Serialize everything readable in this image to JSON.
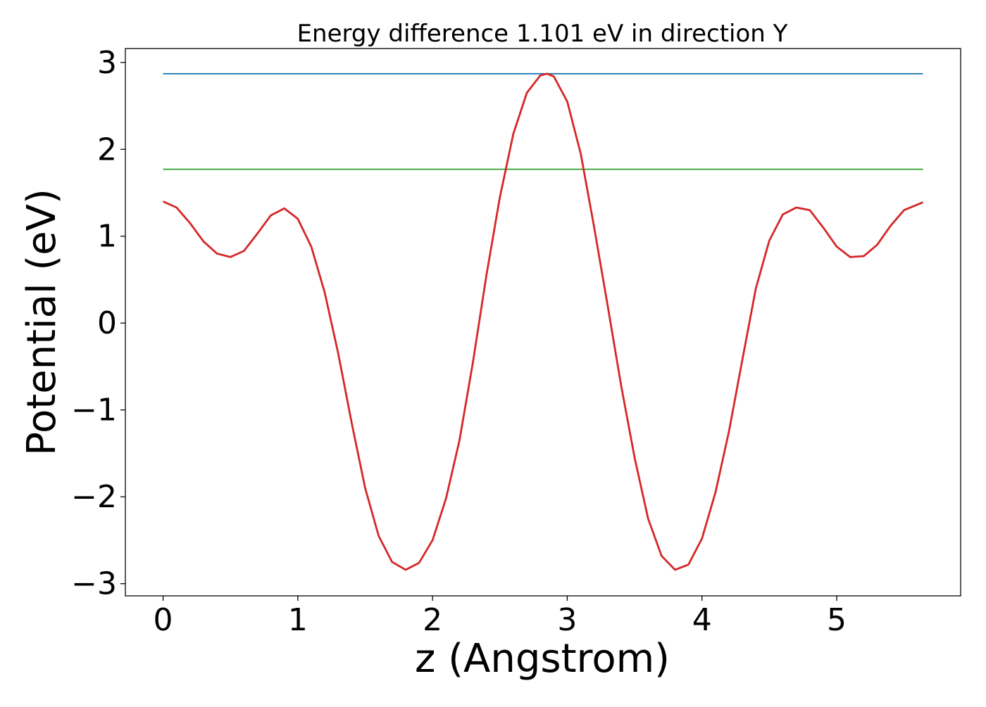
{
  "chart_data": {
    "type": "line",
    "title": "Energy difference 1.101 eV in direction Y",
    "xlabel": "z (Angstrom)",
    "ylabel": "Potential (eV)",
    "xlim": [
      -0.28,
      5.92
    ],
    "ylim": [
      -3.14,
      3.16
    ],
    "xticks": [
      0,
      1,
      2,
      3,
      4,
      5
    ],
    "yticks": [
      -3,
      -2,
      -1,
      0,
      1,
      2,
      3
    ],
    "xtick_labels": [
      "0",
      "1",
      "2",
      "3",
      "4",
      "5"
    ],
    "ytick_labels": [
      "−3",
      "−2",
      "−1",
      "0",
      "1",
      "2",
      "3"
    ],
    "grid": false,
    "legend": "none",
    "series": [
      {
        "color": "#1f77b4",
        "x": [
          0,
          5.64
        ],
        "y": [
          2.87,
          2.87
        ]
      },
      {
        "color": "#2ca02c",
        "x": [
          0,
          5.64
        ],
        "y": [
          1.77,
          1.77
        ]
      },
      {
        "color": "#d62728",
        "x": [
          0,
          0.1,
          0.2,
          0.3,
          0.4,
          0.5,
          0.6,
          0.7,
          0.8,
          0.9,
          1.0,
          1.1,
          1.2,
          1.3,
          1.4,
          1.5,
          1.6,
          1.7,
          1.8,
          1.9,
          2.0,
          2.1,
          2.2,
          2.3,
          2.4,
          2.5,
          2.6,
          2.7,
          2.8,
          2.85,
          2.9,
          3.0,
          3.1,
          3.2,
          3.3,
          3.4,
          3.5,
          3.6,
          3.7,
          3.8,
          3.9,
          4.0,
          4.1,
          4.2,
          4.3,
          4.4,
          4.5,
          4.6,
          4.7,
          4.8,
          4.9,
          5.0,
          5.1,
          5.2,
          5.3,
          5.4,
          5.5,
          5.64
        ],
        "y": [
          1.4,
          1.33,
          1.15,
          0.94,
          0.8,
          0.76,
          0.83,
          1.03,
          1.24,
          1.32,
          1.2,
          0.88,
          0.35,
          -0.35,
          -1.15,
          -1.9,
          -2.45,
          -2.75,
          -2.84,
          -2.76,
          -2.5,
          -2.02,
          -1.35,
          -0.45,
          0.55,
          1.45,
          2.18,
          2.65,
          2.85,
          2.87,
          2.84,
          2.55,
          1.95,
          1.1,
          0.2,
          -0.72,
          -1.55,
          -2.25,
          -2.68,
          -2.84,
          -2.78,
          -2.48,
          -1.95,
          -1.25,
          -0.42,
          0.4,
          0.95,
          1.25,
          1.33,
          1.3,
          1.1,
          0.88,
          0.76,
          0.77,
          0.9,
          1.12,
          1.3,
          1.39
        ]
      }
    ]
  }
}
